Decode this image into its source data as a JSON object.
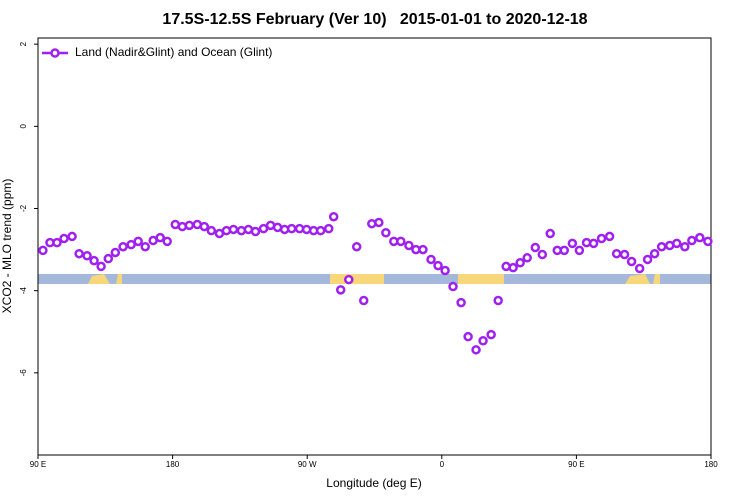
{
  "chart_data": {
    "type": "line",
    "title": "17.5S-12.5S February (Ver 10)   2015-01-01 to 2020-12-18",
    "x_label": "Longitude (deg E)",
    "y_label": "XCO2 - MLO trend (ppm)",
    "x": [
      93.3,
      98.0,
      102.7,
      107.4,
      112.8,
      117.5,
      122.8,
      127.5,
      132.2,
      137.0,
      141.7,
      146.9,
      152.3,
      157.0,
      161.7,
      167.0,
      171.7,
      176.4,
      181.8,
      186.5,
      191.2,
      196.5,
      201.2,
      205.9,
      211.3,
      216.0,
      220.7,
      226.0,
      230.7,
      235.4,
      240.8,
      245.5,
      250.2,
      254.9,
      259.6,
      264.9,
      269.6,
      274.3,
      279.0,
      284.4,
      287.7,
      292.4,
      297.8,
      303.1,
      307.8,
      313.2,
      317.9,
      322.6,
      327.9,
      332.6,
      338.0,
      342.7,
      347.4,
      352.8,
      357.5,
      362.2,
      367.5,
      372.9,
      377.6,
      382.9,
      387.6,
      393.0,
      397.7,
      403.0,
      407.7,
      412.4,
      417.1,
      422.5,
      427.2,
      432.5,
      437.2,
      441.9,
      447.3,
      452.0,
      456.8,
      461.5,
      466.8,
      472.2,
      476.9,
      482.2,
      486.9,
      492.3,
      497.6,
      502.3,
      507.0,
      512.4,
      517.1,
      522.5,
      527.2,
      532.5,
      537.9
    ],
    "series": [
      {
        "name": "Land (Nadir&Glint) and Ocean (Glint)",
        "color": "#a020f0",
        "values": [
          -3.02,
          -2.83,
          -2.83,
          -2.73,
          -2.68,
          -3.1,
          -3.15,
          -3.27,
          -3.41,
          -3.22,
          -3.07,
          -2.93,
          -2.88,
          -2.8,
          -2.93,
          -2.78,
          -2.71,
          -2.8,
          -2.39,
          -2.44,
          -2.41,
          -2.39,
          -2.44,
          -2.54,
          -2.61,
          -2.54,
          -2.51,
          -2.54,
          -2.51,
          -2.56,
          -2.49,
          -2.41,
          -2.46,
          -2.51,
          -2.49,
          -2.49,
          -2.51,
          -2.54,
          -2.54,
          -2.49,
          -2.2,
          -3.98,
          -3.73,
          -2.93,
          -4.24,
          -2.37,
          -2.34,
          -2.59,
          -2.8,
          -2.8,
          -2.9,
          -3.0,
          -3.0,
          -3.24,
          -3.39,
          -3.51,
          -3.9,
          -4.29,
          -5.12,
          -5.44,
          -5.22,
          -5.07,
          -4.24,
          -3.41,
          -3.44,
          -3.32,
          -3.2,
          -2.95,
          -3.12,
          -2.61,
          -3.02,
          -3.02,
          -2.85,
          -3.02,
          -2.83,
          -2.85,
          -2.73,
          -2.68,
          -3.1,
          -3.12,
          -3.29,
          -3.46,
          -3.24,
          -3.1,
          -2.93,
          -2.9,
          -2.85,
          -2.93,
          -2.78,
          -2.71,
          -2.8
        ]
      }
    ],
    "xlim": [
      90,
      540
    ],
    "xticks": [
      {
        "value": 90,
        "label": "90 E"
      },
      180,
      {
        "value": 270,
        "label": "90 W"
      },
      {
        "value": 360,
        "label": "0"
      },
      {
        "value": 450,
        "label": "90 E"
      },
      {
        "value": 540,
        "label": "180"
      }
    ],
    "ylim": [
      -8,
      2.15
    ],
    "yticks": [
      2,
      0,
      -2,
      -4,
      -6
    ],
    "legend": "top-left"
  }
}
